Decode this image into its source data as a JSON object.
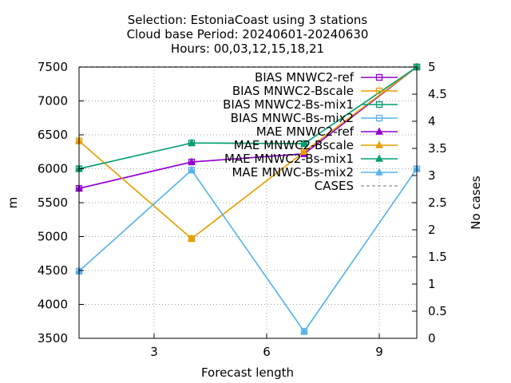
{
  "chart_data": {
    "type": "line",
    "title": [
      "Selection: EstoniaCoast using     3 stations",
      "Cloud base    Period: 20240601-20240630",
      "Hours: 00,03,12,15,18,21"
    ],
    "xlabel": "Forecast length",
    "ylabel": "m",
    "y2label": "No cases",
    "xlim": [
      1,
      10
    ],
    "ylim": [
      3500,
      7500
    ],
    "y2lim": [
      0,
      5
    ],
    "xticks": [
      3,
      6,
      9
    ],
    "yticks": [
      3500,
      4000,
      4500,
      5000,
      5500,
      6000,
      6500,
      7000,
      7500
    ],
    "y2ticks": [
      "0",
      "0.5",
      "1",
      "1.5",
      "2",
      "2.5",
      "3",
      "3.5",
      "4",
      "4.5",
      "5"
    ],
    "grid": true,
    "legend_position": "top-right",
    "x": [
      1,
      4,
      7,
      10
    ],
    "series": [
      {
        "name": "BIAS MNWC2-ref",
        "color": "#9400d3",
        "marker": "square-open",
        "values": [
          5710,
          6100,
          6220,
          7500
        ],
        "axis": "y"
      },
      {
        "name": "BIAS MNWC2-Bscale",
        "color": "#e69f00",
        "marker": "square-open",
        "values": [
          6410,
          4970,
          6250,
          7500
        ],
        "axis": "y"
      },
      {
        "name": "BIAS MNWC2-Bs-mix1",
        "color": "#009e73",
        "marker": "square-open",
        "values": [
          6000,
          6380,
          6370,
          7500
        ],
        "axis": "y"
      },
      {
        "name": "BIAS MNWC-Bs-mix2",
        "color": "#56b4e9",
        "marker": "square-open",
        "values": [
          4490,
          5980,
          3600,
          6000
        ],
        "axis": "y"
      },
      {
        "name": "MAE MNWC2-ref",
        "color": "#9400d3",
        "marker": "triangle-filled",
        "values": [
          5710,
          6100,
          6220,
          7500
        ],
        "axis": "y"
      },
      {
        "name": "MAE MNWC2-Bscale",
        "color": "#e69f00",
        "marker": "triangle-filled",
        "values": [
          6410,
          4970,
          6250,
          7500
        ],
        "axis": "y"
      },
      {
        "name": "MAE MNWC2-Bs-mix1",
        "color": "#009e73",
        "marker": "triangle-filled",
        "values": [
          6000,
          6380,
          6370,
          7500
        ],
        "axis": "y"
      },
      {
        "name": "MAE MNWC-Bs-mix2",
        "color": "#56b4e9",
        "marker": "triangle-filled",
        "values": [
          4490,
          5980,
          3600,
          6000
        ],
        "axis": "y"
      },
      {
        "name": "CASES",
        "color": "#a0a0a0",
        "marker": "none",
        "dash": true,
        "values": [
          5,
          5,
          5,
          5
        ],
        "axis": "y2"
      }
    ]
  }
}
